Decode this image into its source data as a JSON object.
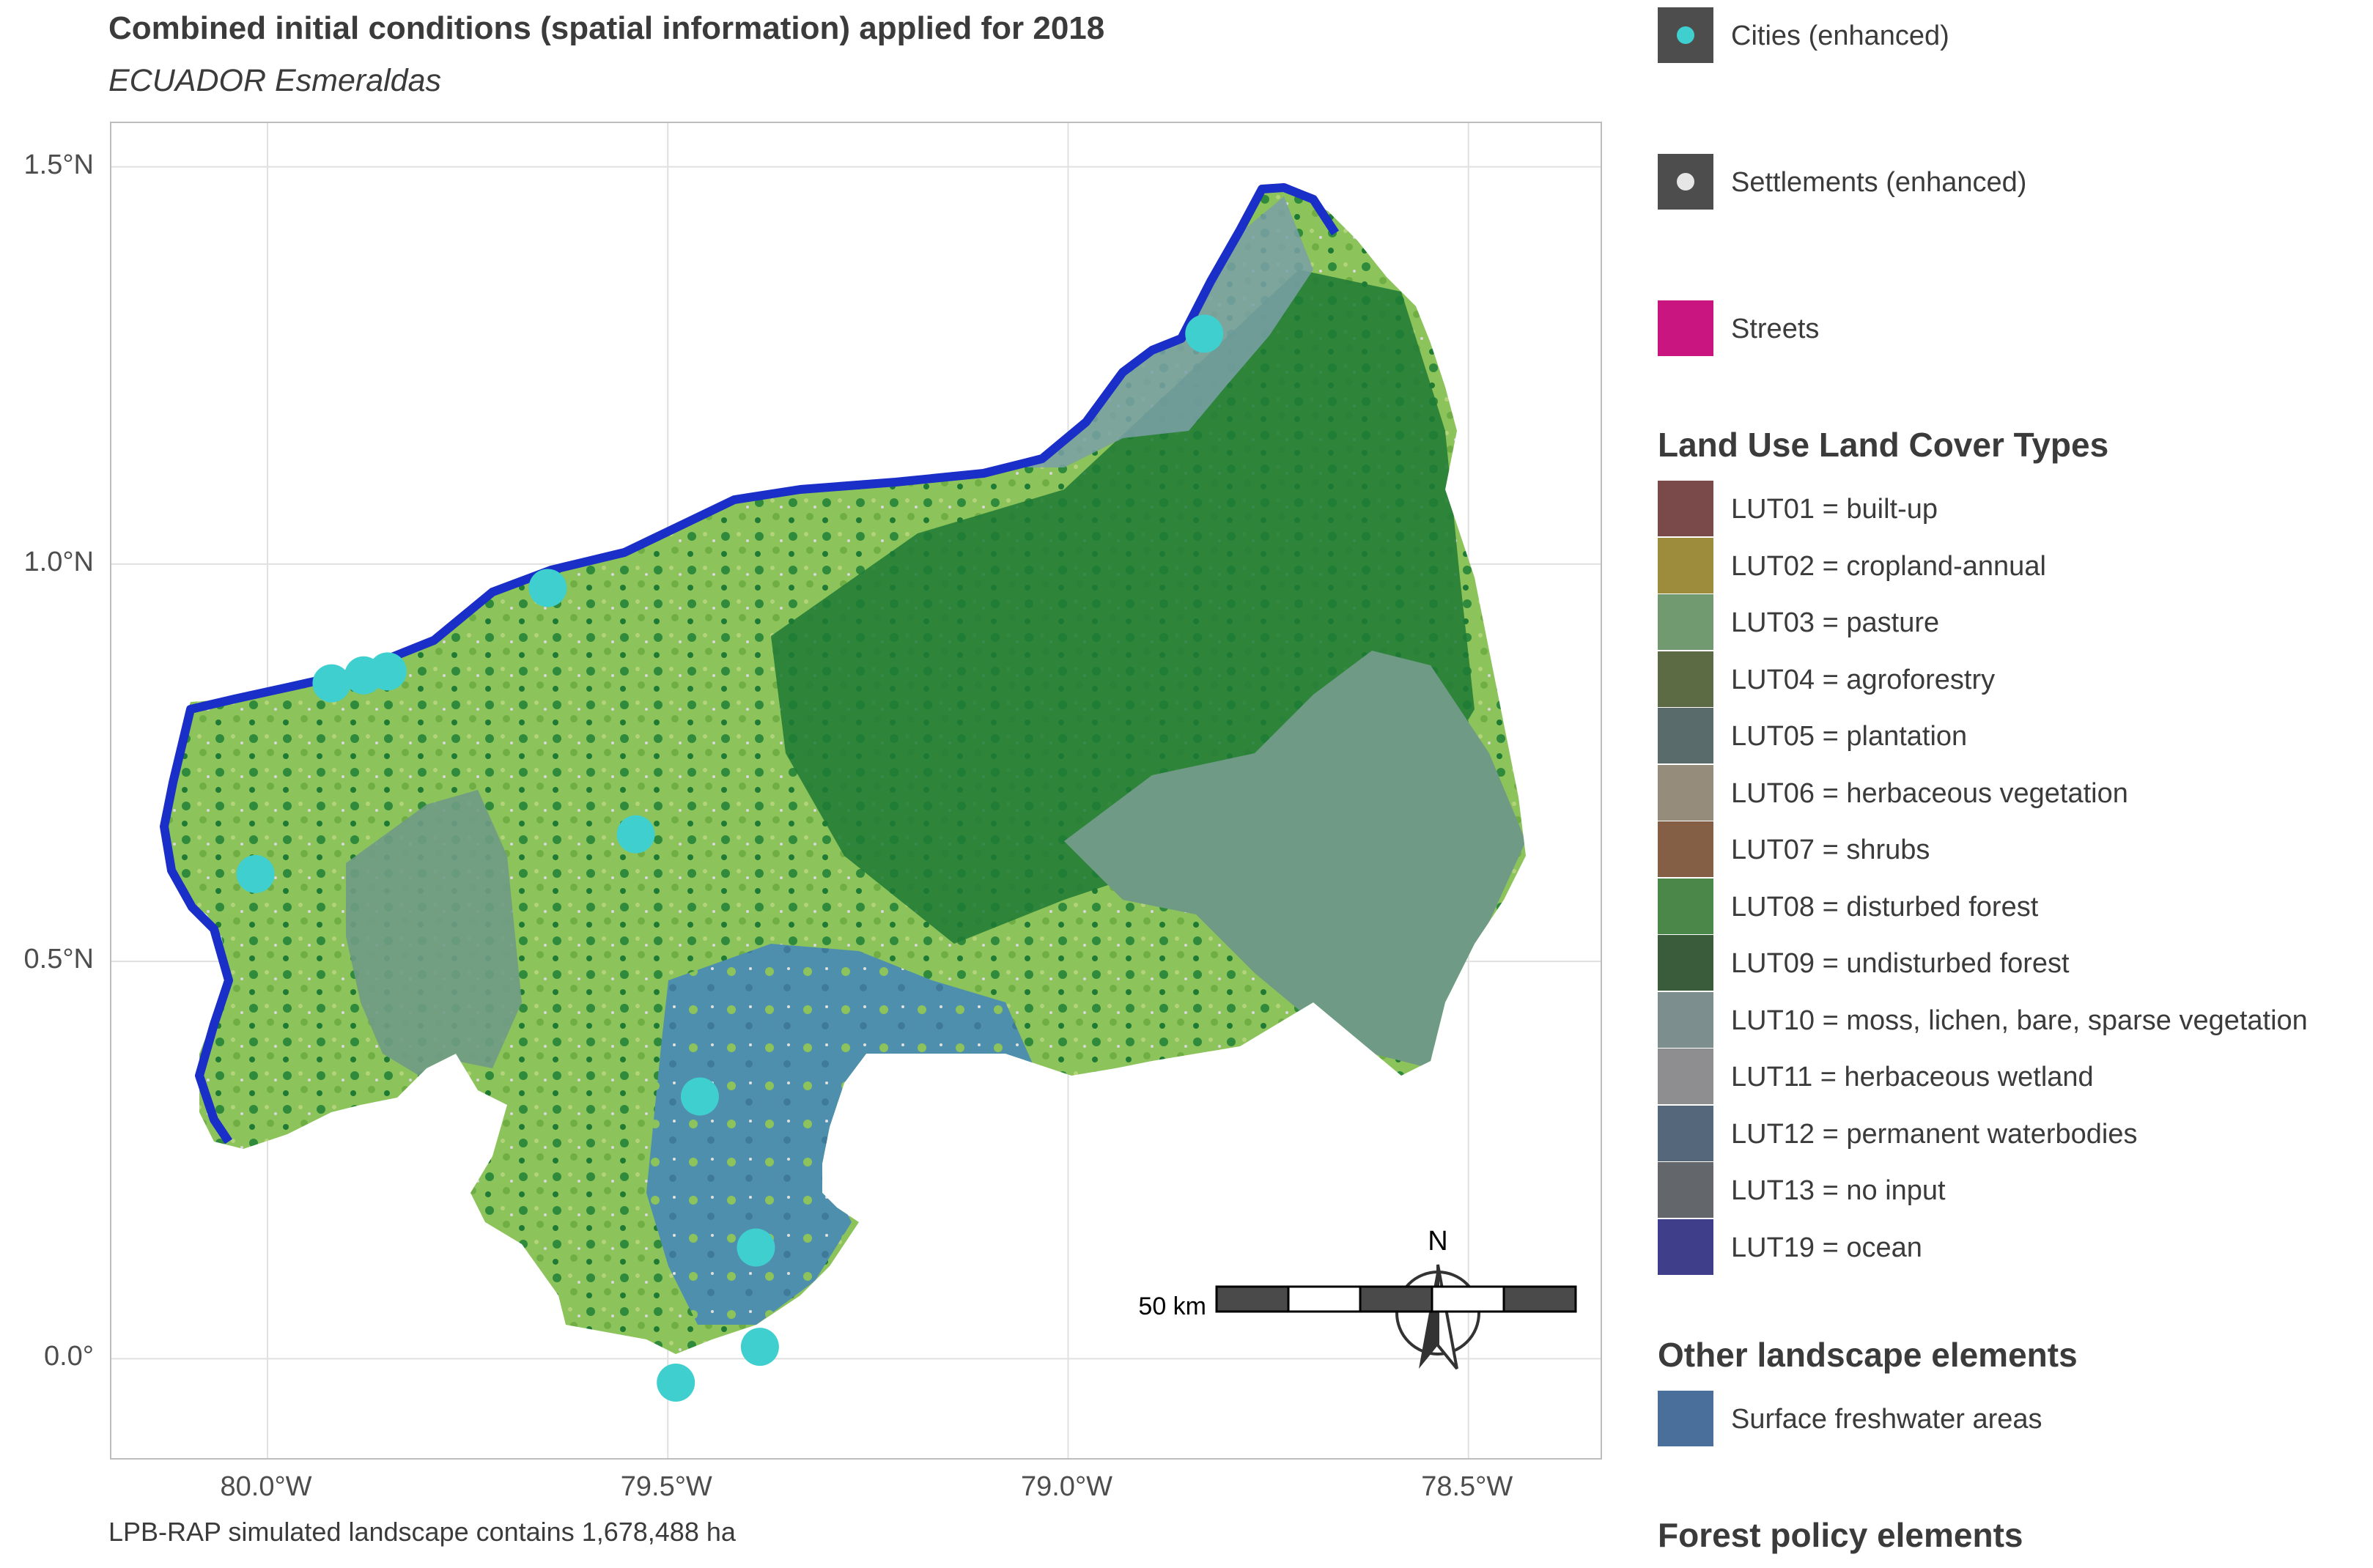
{
  "title": "Combined initial conditions (spatial information) applied for 2018",
  "subtitle": "ECUADOR Esmeraldas",
  "caption": "LPB-RAP simulated landscape contains 1,678,488 ha",
  "axes": {
    "lat_ticks": [
      {
        "value": 1.5,
        "label": "1.5°N"
      },
      {
        "value": 1.0,
        "label": "1.0°N"
      },
      {
        "value": 0.5,
        "label": "0.5°N"
      },
      {
        "value": 0.0,
        "label": "0.0°"
      }
    ],
    "lon_ticks": [
      {
        "value": -80.0,
        "label": "80.0°W"
      },
      {
        "value": -79.5,
        "label": "79.5°W"
      },
      {
        "value": -79.0,
        "label": "79.0°W"
      },
      {
        "value": -78.5,
        "label": "78.5°W"
      }
    ],
    "lon_range": [
      -80.195,
      -78.335
    ],
    "lat_range": [
      -0.125,
      1.555
    ]
  },
  "scale_bar_label": "50 km",
  "north_arrow_label": "N",
  "colors": {
    "coast": "#1a2ec8",
    "city": "#40cfcf",
    "settlement": "#e6e6e6",
    "street": "#c8157f",
    "legend_key_bg": "#4d4d4d"
  },
  "legend": {
    "point_items": [
      {
        "label": "Cities (enhanced)",
        "color": "#40cfcf"
      },
      {
        "label": "Settlements (enhanced)",
        "color": "#e6e6e6"
      }
    ],
    "streets": {
      "label": "Streets",
      "color": "#c8157f"
    },
    "lulc_title": "Land Use Land Cover Types",
    "lulc": [
      {
        "label": "LUT01 = built-up",
        "color": "#7a4a4a"
      },
      {
        "label": "LUT02 = cropland-annual",
        "color": "#9c8c3c"
      },
      {
        "label": "LUT03 = pasture",
        "color": "#719a71"
      },
      {
        "label": "LUT04 = agroforestry",
        "color": "#5d6b45"
      },
      {
        "label": "LUT05 = plantation",
        "color": "#5a6b6b"
      },
      {
        "label": "LUT06 = herbaceous vegetation",
        "color": "#968c7c"
      },
      {
        "label": "LUT07 = shrubs",
        "color": "#845f45"
      },
      {
        "label": "LUT08 = disturbed forest",
        "color": "#4a8748"
      },
      {
        "label": "LUT09 = undisturbed forest",
        "color": "#3a5c3a"
      },
      {
        "label": "LUT10 = moss, lichen, bare, sparse vegetation",
        "color": "#7d8e8e"
      },
      {
        "label": "LUT11 = herbaceous wetland",
        "color": "#8e8e90"
      },
      {
        "label": "LUT12 = permanent waterbodies",
        "color": "#55677a"
      },
      {
        "label": "LUT13 = no input",
        "color": "#63666b"
      },
      {
        "label": "LUT19 = ocean",
        "color": "#3e3e8a"
      }
    ],
    "other_title": "Other landscape elements",
    "other": [
      {
        "label": "Surface freshwater areas",
        "color": "#4a6f9a"
      }
    ],
    "forest_title": "Forest policy elements"
  },
  "cities": [
    {
      "lon": -79.92,
      "lat": 0.85
    },
    {
      "lon": -79.88,
      "lat": 0.86
    },
    {
      "lon": -79.85,
      "lat": 0.865
    },
    {
      "lon": -79.65,
      "lat": 0.97
    },
    {
      "lon": -80.015,
      "lat": 0.61
    },
    {
      "lon": -79.54,
      "lat": 0.66
    },
    {
      "lon": -79.46,
      "lat": 0.33
    },
    {
      "lon": -79.39,
      "lat": 0.14
    },
    {
      "lon": -79.385,
      "lat": 0.015
    },
    {
      "lon": -79.49,
      "lat": -0.03
    },
    {
      "lon": -78.83,
      "lat": 1.29
    }
  ]
}
